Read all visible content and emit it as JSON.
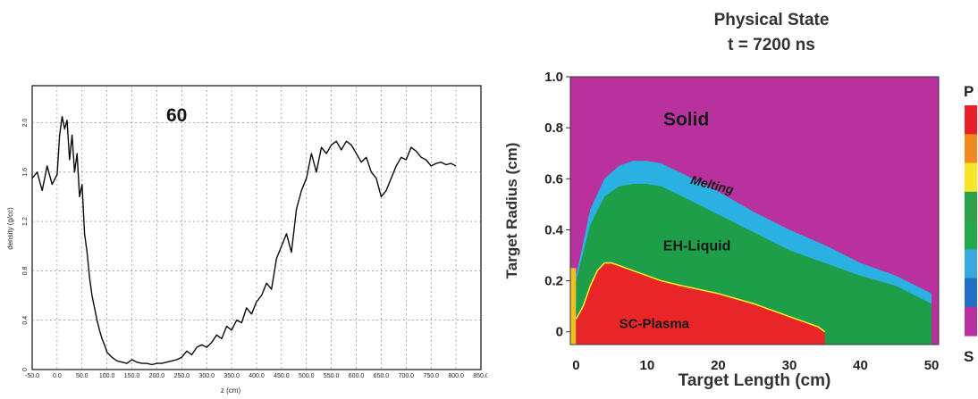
{
  "chart_data": [
    {
      "type": "line",
      "title": "60",
      "xlabel": "z (cm)",
      "ylabel": "density (g/cc)",
      "x_ticks": [
        "-50.0",
        "0.0",
        "50.0",
        "100.0",
        "150.0",
        "200.0",
        "250.0",
        "300.0",
        "350.0",
        "400.0",
        "450.0",
        "500.0",
        "550.0",
        "600.0",
        "650.0",
        "700.0",
        "750.0",
        "800.0",
        "850.0"
      ],
      "y_ticks": [
        "0",
        "0.4",
        "0.8",
        "1.2",
        "1.6",
        "2.0"
      ],
      "xlim": [
        -50,
        850
      ],
      "ylim": [
        0,
        2.3
      ],
      "grid": true,
      "series": [
        {
          "x": [
            -50,
            -40,
            -30,
            -20,
            -10,
            0,
            5,
            10,
            15,
            20,
            25,
            30,
            35,
            40,
            45,
            50,
            55,
            60,
            65,
            70,
            75,
            80,
            85,
            90,
            95,
            100,
            110,
            120,
            130,
            140,
            150,
            160,
            170,
            180,
            190,
            200,
            210,
            220,
            230,
            240,
            250,
            260,
            270,
            280,
            290,
            300,
            310,
            320,
            330,
            340,
            350,
            360,
            370,
            380,
            390,
            400,
            410,
            420,
            430,
            440,
            450,
            460,
            470,
            480,
            490,
            500,
            510,
            520,
            530,
            540,
            550,
            560,
            570,
            580,
            590,
            600,
            610,
            620,
            630,
            640,
            650,
            660,
            670,
            680,
            690,
            700,
            710,
            720,
            730,
            740,
            750,
            760,
            770,
            780,
            790,
            800
          ],
          "y": [
            1.55,
            1.6,
            1.45,
            1.65,
            1.5,
            1.58,
            1.9,
            2.05,
            1.95,
            2.02,
            1.7,
            1.9,
            1.6,
            1.75,
            1.4,
            1.5,
            1.1,
            0.95,
            0.75,
            0.6,
            0.5,
            0.4,
            0.32,
            0.25,
            0.2,
            0.14,
            0.1,
            0.07,
            0.06,
            0.05,
            0.08,
            0.06,
            0.05,
            0.05,
            0.04,
            0.05,
            0.05,
            0.06,
            0.07,
            0.08,
            0.1,
            0.15,
            0.12,
            0.18,
            0.2,
            0.18,
            0.22,
            0.28,
            0.25,
            0.35,
            0.32,
            0.4,
            0.38,
            0.5,
            0.45,
            0.55,
            0.6,
            0.7,
            0.65,
            0.9,
            1.0,
            1.1,
            0.95,
            1.3,
            1.45,
            1.55,
            1.75,
            1.6,
            1.8,
            1.75,
            1.82,
            1.85,
            1.78,
            1.85,
            1.82,
            1.75,
            1.68,
            1.72,
            1.6,
            1.55,
            1.4,
            1.45,
            1.55,
            1.65,
            1.72,
            1.7,
            1.8,
            1.77,
            1.72,
            1.7,
            1.65,
            1.67,
            1.68,
            1.66,
            1.67,
            1.65
          ]
        }
      ]
    },
    {
      "type": "heatmap",
      "title": "Physical State",
      "subtitle": "t = 7200 ns",
      "xlabel": "Target Length (cm)",
      "ylabel": "Target Radius (cm)",
      "x_ticks": [
        "0",
        "10",
        "20",
        "30",
        "40",
        "50"
      ],
      "y_ticks": [
        "0",
        "0.2",
        "0.4",
        "0.6",
        "0.8",
        "1.0"
      ],
      "xlim": [
        -0.8,
        51
      ],
      "ylim": [
        -0.05,
        1.0
      ],
      "colorbar": {
        "top_label": "P",
        "bottom_label": "S",
        "colors": [
          "#e8202a",
          "#f08a1f",
          "#f7e52a",
          "#2ca04a",
          "#24a84a",
          "#3aa8e0",
          "#2070c8",
          "#b8329e"
        ]
      },
      "regions": [
        {
          "name": "Solid",
          "color": "#b8329e",
          "boundary_x": [],
          "boundary_y": []
        },
        {
          "name": "Melting",
          "color": "#2bb0e4",
          "boundary_x": [
            0,
            2,
            4,
            6,
            8,
            10,
            12,
            15,
            20,
            25,
            30,
            35,
            40,
            45,
            50
          ],
          "boundary_y": [
            0.22,
            0.48,
            0.6,
            0.65,
            0.67,
            0.67,
            0.66,
            0.62,
            0.55,
            0.47,
            0.4,
            0.34,
            0.27,
            0.22,
            0.15
          ]
        },
        {
          "name": "EH-Liquid",
          "color": "#1e9e48",
          "boundary_x": [
            0,
            2,
            4,
            6,
            8,
            10,
            12,
            15,
            20,
            25,
            30,
            35,
            40,
            45,
            50
          ],
          "boundary_y": [
            0.2,
            0.42,
            0.53,
            0.57,
            0.58,
            0.58,
            0.57,
            0.53,
            0.46,
            0.39,
            0.32,
            0.27,
            0.22,
            0.18,
            0.11
          ]
        },
        {
          "name": "SC-Plasma",
          "color": "#e82628",
          "boundary_x": [
            0,
            1,
            2,
            3,
            4,
            5,
            6,
            8,
            10,
            12,
            15,
            20,
            25,
            30,
            32,
            34,
            35
          ],
          "boundary_y": [
            0.05,
            0.1,
            0.18,
            0.24,
            0.27,
            0.27,
            0.26,
            0.24,
            0.22,
            0.2,
            0.18,
            0.15,
            0.11,
            0.06,
            0.04,
            0.02,
            0.0
          ]
        }
      ]
    }
  ]
}
